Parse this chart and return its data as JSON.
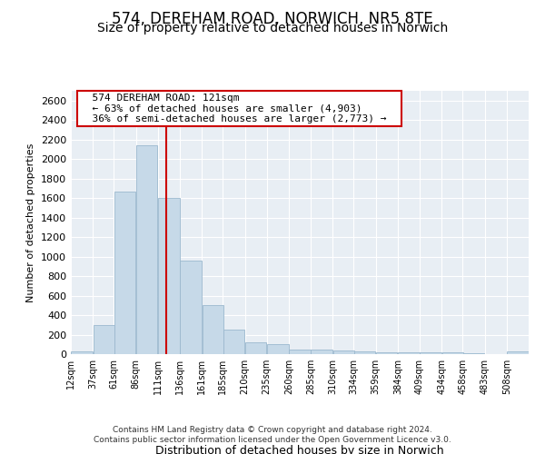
{
  "title_line1": "574, DEREHAM ROAD, NORWICH, NR5 8TE",
  "title_line2": "Size of property relative to detached houses in Norwich",
  "xlabel": "Distribution of detached houses by size in Norwich",
  "ylabel": "Number of detached properties",
  "footer_line1": "Contains HM Land Registry data © Crown copyright and database right 2024.",
  "footer_line2": "Contains public sector information licensed under the Open Government Licence v3.0.",
  "annotation_line1": "574 DEREHAM ROAD: 121sqm",
  "annotation_line2": "← 63% of detached houses are smaller (4,903)",
  "annotation_line3": "36% of semi-detached houses are larger (2,773) →",
  "subject_value": 121,
  "bar_color": "#c6d9e8",
  "bar_edge_color": "#9bb8ce",
  "subject_line_color": "#cc0000",
  "annotation_box_color": "#cc0000",
  "categories": [
    "12sqm",
    "37sqm",
    "61sqm",
    "86sqm",
    "111sqm",
    "136sqm",
    "161sqm",
    "185sqm",
    "210sqm",
    "235sqm",
    "260sqm",
    "285sqm",
    "310sqm",
    "334sqm",
    "359sqm",
    "384sqm",
    "409sqm",
    "434sqm",
    "458sqm",
    "483sqm",
    "508sqm"
  ],
  "bin_left_edges": [
    12,
    37,
    61,
    86,
    111,
    136,
    161,
    185,
    210,
    235,
    260,
    285,
    310,
    334,
    359,
    384,
    409,
    434,
    458,
    483,
    508
  ],
  "values": [
    25,
    300,
    1670,
    2140,
    1600,
    960,
    500,
    250,
    120,
    100,
    50,
    50,
    35,
    30,
    20,
    20,
    20,
    15,
    5,
    0,
    25
  ],
  "ylim": [
    0,
    2700
  ],
  "yticks": [
    0,
    200,
    400,
    600,
    800,
    1000,
    1200,
    1400,
    1600,
    1800,
    2000,
    2200,
    2400,
    2600
  ],
  "background_color": "#ffffff",
  "plot_bg_color": "#e8eef4",
  "grid_color": "#ffffff",
  "title_fontsize": 12,
  "subtitle_fontsize": 10
}
